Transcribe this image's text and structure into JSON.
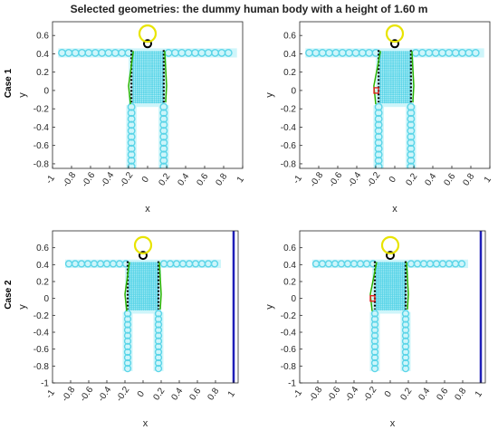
{
  "figure": {
    "title": "Selected geometries: the dummy human body with a height of 1.60 m"
  },
  "colors": {
    "body_circle": "#5bd5e8",
    "body_glow": "#c9f4fa",
    "head": "#e8e400",
    "neck": "#000000",
    "electrode_line": "#000000",
    "green_contour": "#2cb400",
    "red_marker": "#e02020",
    "wall": "#1f1fb8",
    "axis": "#262626"
  },
  "chart_data": [
    {
      "type": "scatter",
      "panel": "top-left",
      "row_label": "Case 1",
      "xlabel": "x",
      "ylabel": "y",
      "xlim": [
        -1,
        1
      ],
      "ylim": [
        -0.85,
        0.75
      ],
      "xticks": [
        "-1",
        "-0.8",
        "-0.6",
        "-0.4",
        "-0.2",
        "0",
        "0.2",
        "0.4",
        "0.6",
        "0.8",
        "1"
      ],
      "yticks": [
        "-0.8",
        "-0.6",
        "-0.4",
        "-0.2",
        "0",
        "0.2",
        "0.4",
        "0.6"
      ],
      "head_center": [
        0.0,
        0.62
      ],
      "head_radius": 0.06,
      "neck_center": [
        0.0,
        0.51
      ],
      "arm_y": 0.41,
      "arm_x_range": [
        -0.9,
        0.9
      ],
      "torso_x_range": [
        -0.17,
        0.17
      ],
      "torso_y_range": [
        -0.13,
        0.44
      ],
      "leg_x": [
        -0.17,
        0.17
      ],
      "leg_y_range": [
        -0.83,
        -0.18
      ],
      "contour_left_x": -0.2,
      "contour_right_x": 0.2,
      "wall": false,
      "red_marker": false
    },
    {
      "type": "scatter",
      "panel": "top-right",
      "row_label": "",
      "xlabel": "x",
      "ylabel": "y",
      "xlim": [
        -1,
        1
      ],
      "ylim": [
        -0.85,
        0.75
      ],
      "xticks": [
        "-1",
        "-0.8",
        "-0.6",
        "-0.4",
        "-0.2",
        "0",
        "0.2",
        "0.4",
        "0.6",
        "0.8",
        "1"
      ],
      "yticks": [
        "-0.8",
        "-0.6",
        "-0.4",
        "-0.2",
        "0",
        "0.2",
        "0.4",
        "0.6"
      ],
      "head_center": [
        0.0,
        0.62
      ],
      "head_radius": 0.06,
      "neck_center": [
        0.0,
        0.51
      ],
      "arm_y": 0.41,
      "arm_x_range": [
        -0.9,
        0.9
      ],
      "torso_x_range": [
        -0.17,
        0.17
      ],
      "torso_y_range": [
        -0.13,
        0.44
      ],
      "leg_x": [
        -0.17,
        0.17
      ],
      "leg_y_range": [
        -0.83,
        -0.18
      ],
      "contour_left_x": -0.22,
      "contour_right_x": 0.2,
      "wall": false,
      "red_marker": true,
      "red_marker_point": [
        -0.19,
        0.0
      ]
    },
    {
      "type": "scatter",
      "panel": "bottom-left",
      "row_label": "Case 2",
      "xlabel": "x",
      "ylabel": "y",
      "xlim": [
        -1,
        1.05
      ],
      "ylim": [
        -1,
        0.8
      ],
      "xticks": [
        "-1",
        "-0.8",
        "-0.6",
        "-0.4",
        "-0.2",
        "0",
        "0.2",
        "0.4",
        "0.6",
        "0.8",
        "1"
      ],
      "yticks": [
        "-1",
        "-0.8",
        "-0.6",
        "-0.4",
        "-0.2",
        "0",
        "0.2",
        "0.4",
        "0.6"
      ],
      "head_center": [
        0.0,
        0.63
      ],
      "head_radius": 0.06,
      "neck_center": [
        0.0,
        0.51
      ],
      "arm_y": 0.41,
      "arm_x_range": [
        -0.82,
        0.82
      ],
      "torso_x_range": [
        -0.17,
        0.17
      ],
      "torso_y_range": [
        -0.13,
        0.44
      ],
      "leg_x": [
        -0.17,
        0.17
      ],
      "leg_y_range": [
        -0.83,
        -0.18
      ],
      "contour_left_x": -0.2,
      "contour_right_x": 0.2,
      "wall": true,
      "wall_x": 1.0,
      "red_marker": false
    },
    {
      "type": "scatter",
      "panel": "bottom-right",
      "row_label": "",
      "xlabel": "x",
      "ylabel": "y",
      "xlim": [
        -1,
        1.05
      ],
      "ylim": [
        -1,
        0.8
      ],
      "xticks": [
        "-1",
        "-0.8",
        "-0.6",
        "-0.4",
        "-0.2",
        "0",
        "0.2",
        "0.4",
        "0.6",
        "0.8",
        "1"
      ],
      "yticks": [
        "-1",
        "-0.8",
        "-0.6",
        "-0.4",
        "-0.2",
        "0",
        "0.2",
        "0.4",
        "0.6"
      ],
      "head_center": [
        0.0,
        0.63
      ],
      "head_radius": 0.06,
      "neck_center": [
        0.0,
        0.51
      ],
      "arm_y": 0.41,
      "arm_x_range": [
        -0.82,
        0.82
      ],
      "torso_x_range": [
        -0.17,
        0.17
      ],
      "torso_y_range": [
        -0.13,
        0.44
      ],
      "leg_x": [
        -0.17,
        0.17
      ],
      "leg_y_range": [
        -0.83,
        -0.18
      ],
      "contour_left_x": -0.22,
      "contour_right_x": 0.2,
      "wall": true,
      "wall_x": 1.0,
      "red_marker": true,
      "red_marker_point": [
        -0.19,
        0.0
      ]
    }
  ]
}
